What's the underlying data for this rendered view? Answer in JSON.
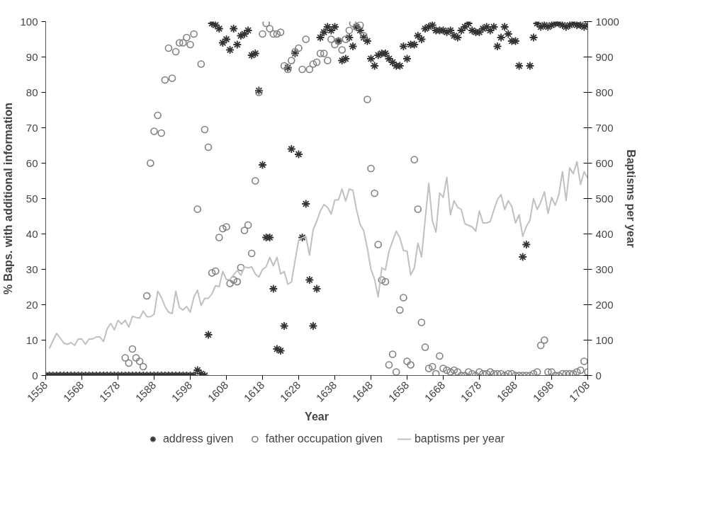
{
  "chart_data": {
    "type": "scatter",
    "xlabel": "Year",
    "ylabel": "% Baps. with additional information",
    "y2label": "Baptisms per year",
    "xlim": [
      1558,
      1708
    ],
    "xticks": [
      1558,
      1568,
      1578,
      1588,
      1598,
      1608,
      1618,
      1628,
      1638,
      1648,
      1658,
      1668,
      1678,
      1688,
      1698,
      1708
    ],
    "ylim": [
      0,
      100
    ],
    "yticks": [
      0,
      10,
      20,
      30,
      40,
      50,
      60,
      70,
      80,
      90,
      100
    ],
    "y2lim": [
      0,
      1000
    ],
    "y2ticks": [
      0,
      100,
      200,
      300,
      400,
      500,
      600,
      700,
      800,
      900,
      1000
    ],
    "grid": false,
    "legend": "bottom",
    "x": [
      1558,
      1559,
      1560,
      1561,
      1562,
      1563,
      1564,
      1565,
      1566,
      1567,
      1568,
      1569,
      1570,
      1571,
      1572,
      1573,
      1574,
      1575,
      1576,
      1577,
      1578,
      1579,
      1580,
      1581,
      1582,
      1583,
      1584,
      1585,
      1586,
      1587,
      1588,
      1589,
      1590,
      1591,
      1592,
      1593,
      1594,
      1595,
      1596,
      1597,
      1598,
      1599,
      1600,
      1601,
      1602,
      1603,
      1604,
      1605,
      1606,
      1607,
      1608,
      1609,
      1610,
      1611,
      1612,
      1613,
      1614,
      1615,
      1616,
      1617,
      1618,
      1619,
      1620,
      1621,
      1622,
      1623,
      1624,
      1625,
      1626,
      1627,
      1628,
      1629,
      1630,
      1631,
      1632,
      1633,
      1634,
      1635,
      1636,
      1637,
      1638,
      1639,
      1640,
      1641,
      1642,
      1643,
      1644,
      1645,
      1646,
      1647,
      1648,
      1649,
      1650,
      1651,
      1652,
      1653,
      1654,
      1655,
      1656,
      1657,
      1658,
      1659,
      1660,
      1661,
      1662,
      1663,
      1664,
      1665,
      1666,
      1667,
      1668,
      1669,
      1670,
      1671,
      1672,
      1673,
      1674,
      1675,
      1676,
      1677,
      1678,
      1679,
      1680,
      1681,
      1682,
      1683,
      1684,
      1685,
      1686,
      1687,
      1688,
      1689,
      1690,
      1691,
      1692,
      1693,
      1694,
      1695,
      1696,
      1697,
      1698,
      1699,
      1700,
      1701,
      1702,
      1703,
      1704,
      1705,
      1706,
      1707,
      1708
    ],
    "series": [
      {
        "name": "address given",
        "marker": "cross",
        "color": "#333333",
        "values": [
          0,
          0,
          0,
          0,
          0,
          0,
          0,
          0,
          0,
          0,
          0,
          0,
          0,
          0,
          0,
          0,
          0,
          0,
          0,
          0,
          0,
          0,
          0,
          0,
          0,
          0,
          0,
          0,
          0,
          0,
          0,
          0,
          0,
          0,
          0,
          0,
          0,
          0,
          0,
          0,
          0,
          0,
          1.5,
          0.5,
          0,
          11.5,
          99.5,
          99,
          98,
          94,
          95,
          92,
          98,
          93.5,
          96,
          96.5,
          97.5,
          90.5,
          91,
          80.5,
          59.5,
          39,
          39,
          24.5,
          7.5,
          7,
          14,
          87,
          64,
          91,
          62.5,
          39,
          48.5,
          27,
          14,
          24.5,
          95.5,
          97,
          98.5,
          97.5,
          98.5,
          94.5,
          89,
          89.5,
          95.5,
          93,
          98.5,
          97.5,
          95.5,
          94.5,
          89.5,
          87.5,
          90.5,
          91,
          91,
          89.5,
          88.5,
          87.5,
          87.5,
          93,
          89.5,
          93.5,
          93.5,
          96,
          95,
          98,
          98.5,
          99,
          97.5,
          97.5,
          97.5,
          97,
          97.5,
          96,
          95.5,
          97.5,
          98.5,
          99.5,
          97.5,
          97,
          97,
          98,
          98.5,
          97.5,
          98.5,
          93,
          95.5,
          98.5,
          96.5,
          94.5,
          94.5,
          87.5,
          33.5,
          37,
          87.5,
          95.5,
          99.5,
          98.5,
          99,
          98.5,
          99,
          99.5,
          99.5,
          99,
          98.5,
          99,
          99.5,
          99,
          99,
          98.5,
          99
        ]
      },
      {
        "name": "father occupation given",
        "marker": "circle",
        "color": "#808080",
        "values": [
          null,
          null,
          null,
          null,
          null,
          null,
          null,
          null,
          null,
          null,
          null,
          null,
          null,
          null,
          null,
          null,
          null,
          null,
          null,
          null,
          null,
          null,
          5,
          3.5,
          7.5,
          5,
          4,
          2.5,
          22.5,
          60,
          69,
          73.5,
          68.5,
          83.5,
          92.5,
          84,
          91.5,
          94,
          94,
          95.5,
          93.5,
          96.5,
          47,
          88,
          69.5,
          64.5,
          29,
          29.5,
          39,
          41.5,
          42,
          26,
          27,
          26.5,
          30.5,
          41,
          42.5,
          34.5,
          55,
          80,
          96.5,
          99.5,
          98,
          96.5,
          96.5,
          97,
          87.5,
          86.5,
          89,
          91.5,
          92.5,
          86.5,
          95,
          86.5,
          88,
          88.5,
          91,
          91,
          89,
          95,
          93.5,
          94.5,
          92,
          95,
          97.5,
          99.5,
          98.5,
          99,
          96,
          78,
          58.5,
          51.5,
          37,
          27,
          26.5,
          3,
          6,
          1,
          18.5,
          22,
          4,
          3,
          61,
          47,
          15,
          8,
          2,
          2.5,
          0.5,
          5.5,
          2,
          1.5,
          1,
          1.5,
          1,
          0,
          0,
          1,
          0.5,
          0,
          1,
          0.5,
          0.5,
          1,
          0.5,
          0.5,
          0.5,
          0,
          0.5,
          0.5,
          0,
          0,
          0,
          0,
          0,
          0.5,
          1,
          8.5,
          10,
          1,
          1,
          0,
          0,
          0.5,
          0.5,
          0.5,
          0.5,
          1,
          1.5,
          4,
          1
        ]
      },
      {
        "name": "baptisms per year",
        "type": "line",
        "axis": "y2",
        "marker": "none",
        "color": "#c0c0c0",
        "values": [
          null,
          76,
          98,
          119,
          106,
          92,
          88,
          93,
          85,
          103,
          103,
          88,
          103,
          103,
          109,
          109,
          96,
          132,
          147,
          129,
          156,
          145,
          156,
          137,
          167,
          164,
          162,
          182,
          166,
          166,
          173,
          238,
          221,
          195,
          179,
          175,
          238,
          192,
          185,
          195,
          179,
          221,
          241,
          198,
          218,
          218,
          231,
          254,
          251,
          294,
          271,
          271,
          284,
          297,
          283,
          307,
          304,
          307,
          287,
          278,
          300,
          307,
          334,
          310,
          334,
          287,
          294,
          258,
          264,
          324,
          383,
          389,
          393,
          340,
          412,
          436,
          465,
          483,
          475,
          456,
          496,
          496,
          527,
          493,
          527,
          523,
          469,
          427,
          409,
          360,
          300,
          272,
          222,
          304,
          298,
          351,
          380,
          408,
          389,
          353,
          351,
          284,
          304,
          374,
          335,
          440,
          543,
          437,
          405,
          516,
          503,
          560,
          454,
          494,
          475,
          469,
          429,
          424,
          420,
          408,
          465,
          431,
          431,
          435,
          467,
          497,
          511,
          469,
          494,
          477,
          431,
          454,
          393,
          421,
          439,
          500,
          469,
          490,
          519,
          458,
          503,
          481,
          511,
          576,
          494,
          587,
          570,
          604,
          540,
          576,
          557
        ]
      }
    ]
  }
}
